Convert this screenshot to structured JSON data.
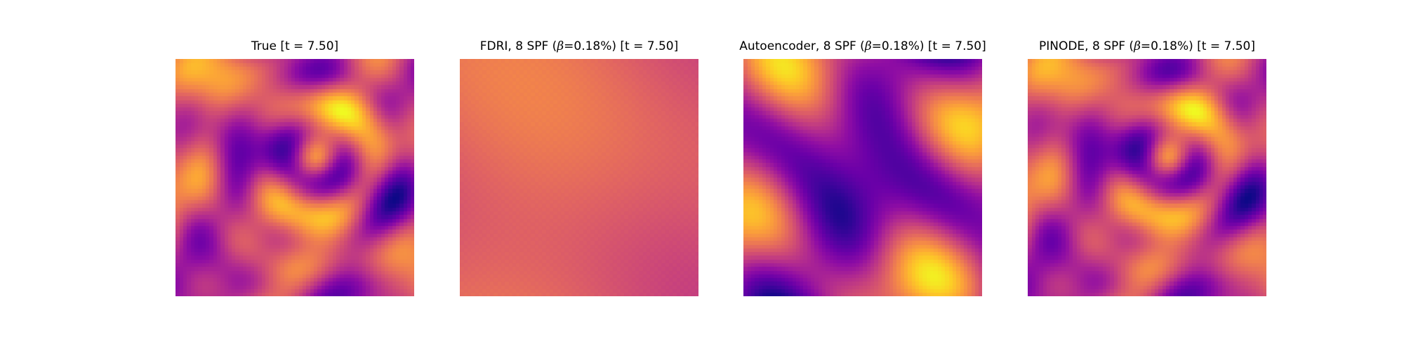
{
  "chart_data": [
    {
      "type": "heatmap",
      "title_parts": {
        "pre": "True [t = 7.50]",
        "beta": "",
        "post": ""
      },
      "colormap": "plasma",
      "source": "true",
      "smoothness": 1.0,
      "contrast": 1.0,
      "gridded": false
    },
    {
      "type": "heatmap",
      "title_parts": {
        "pre": "FDRI, 8 SPF (",
        "beta": "β",
        "post": "=0.18%) [t = 7.50]"
      },
      "colormap": "plasma",
      "source": "fdri",
      "smoothness": 0.2,
      "contrast": 0.22,
      "gridded": true
    },
    {
      "type": "heatmap",
      "title_parts": {
        "pre": "Autoencoder, 8 SPF (",
        "beta": "β",
        "post": "=0.18%) [t = 7.50]"
      },
      "colormap": "plasma",
      "source": "autoencoder",
      "smoothness": 0.6,
      "contrast": 0.95,
      "gridded": false
    },
    {
      "type": "heatmap",
      "title_parts": {
        "pre": "PINODE, 8 SPF (",
        "beta": "β",
        "post": "=0.18%) [t = 7.50]"
      },
      "colormap": "plasma",
      "source": "pinode",
      "smoothness": 0.9,
      "contrast": 1.0,
      "gridded": false
    }
  ]
}
